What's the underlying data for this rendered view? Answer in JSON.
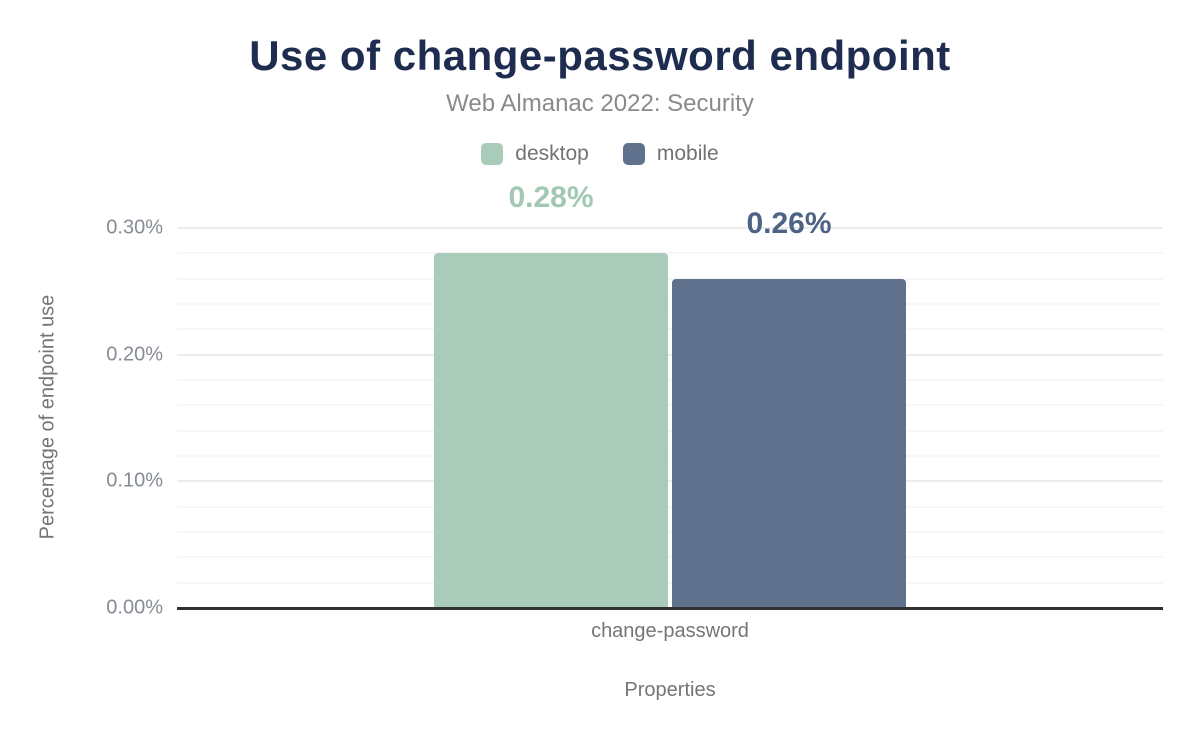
{
  "header": {
    "title": "Use of change-password endpoint",
    "subtitle": "Web Almanac 2022: Security"
  },
  "colors": {
    "title_text": "#1e2d4f",
    "desktop": "#a9cbb9",
    "mobile": "#5f718d",
    "desktop_value_label": "#a2c7b2",
    "mobile_value_label": "#4e6285",
    "axis_line": "#303030",
    "grid_major": "#ececec",
    "grid_minor": "#f7f7f7"
  },
  "chart_data": {
    "type": "bar",
    "title": "Use of change-password endpoint",
    "subtitle": "Web Almanac 2022: Security",
    "categories": [
      "change-password"
    ],
    "series": [
      {
        "name": "desktop",
        "values": [
          0.28
        ],
        "data_labels": [
          "0.28%"
        ],
        "color": "#a9cbb9",
        "label_color": "#a2c7b2"
      },
      {
        "name": "mobile",
        "values": [
          0.26
        ],
        "data_labels": [
          "0.26%"
        ],
        "color": "#5f718d",
        "label_color": "#4e6285"
      }
    ],
    "xlabel": "Properties",
    "ylabel": "Percentage of endpoint use",
    "ylim": [
      0,
      0.3
    ],
    "yticks": [
      {
        "value": 0.0,
        "label": "0.00%"
      },
      {
        "value": 0.1,
        "label": "0.10%"
      },
      {
        "value": 0.2,
        "label": "0.20%"
      },
      {
        "value": 0.3,
        "label": "0.30%"
      }
    ],
    "minor_grid_step": 0.02,
    "grid": true,
    "legend_position": "top"
  }
}
